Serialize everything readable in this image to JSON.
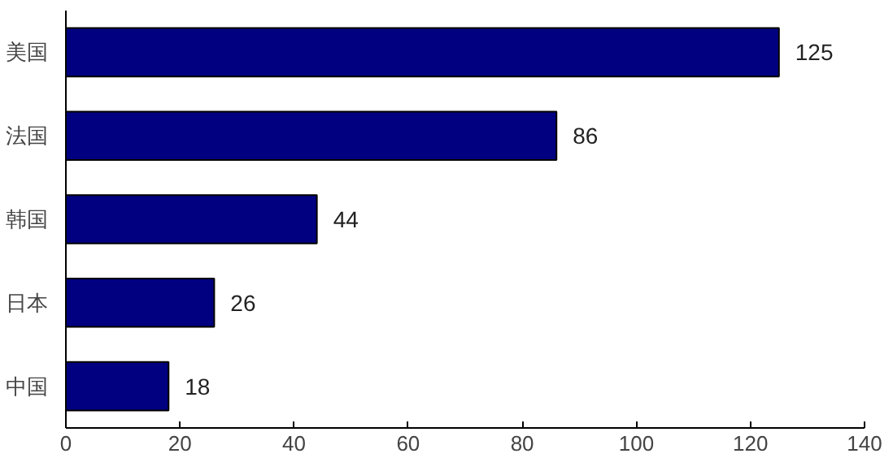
{
  "chart_data": {
    "type": "bar",
    "orientation": "horizontal",
    "categories": [
      "美国",
      "法国",
      "韩国",
      "日本",
      "中国"
    ],
    "values": [
      125,
      86,
      44,
      26,
      18
    ],
    "color": "#000080",
    "xlim": [
      0,
      140
    ],
    "xticks": [
      0,
      20,
      40,
      60,
      80,
      100,
      120,
      140
    ],
    "data_labels": true,
    "grid": false
  }
}
